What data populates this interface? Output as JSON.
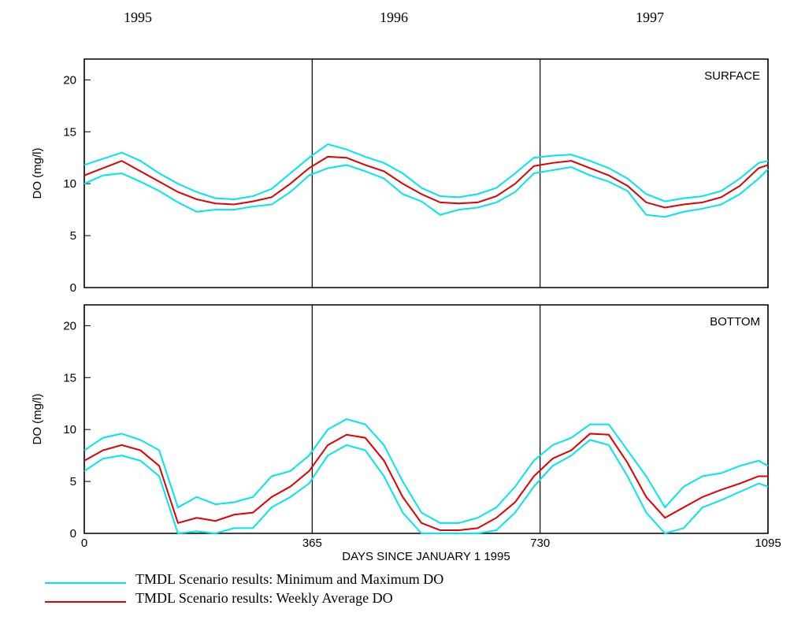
{
  "year_labels": [
    "1995",
    "1996",
    "1997"
  ],
  "legend": [
    {
      "label": "TMDL Scenario results: Minimum and Maximum DO",
      "color": "#00e5ee"
    },
    {
      "label": "TMDL Scenario results: Weekly Average DO",
      "color": "#e00000"
    }
  ],
  "chart_data": [
    {
      "type": "line",
      "panel_label": "SURFACE",
      "ylabel": "DO (mg/l)",
      "xlim": [
        0,
        1095
      ],
      "ylim": [
        0,
        22
      ],
      "yticks": [
        0,
        5,
        10,
        15,
        20
      ],
      "xticks": [
        0,
        365,
        730,
        1095
      ],
      "show_xtick_labels": false,
      "x": [
        0,
        30,
        60,
        90,
        120,
        150,
        180,
        210,
        240,
        270,
        300,
        330,
        360,
        390,
        420,
        450,
        480,
        510,
        540,
        570,
        600,
        630,
        660,
        690,
        720,
        750,
        780,
        810,
        840,
        870,
        900,
        930,
        960,
        990,
        1020,
        1050,
        1080,
        1095
      ],
      "series": [
        {
          "color": "#00e5ee",
          "values": [
            11.8,
            12.4,
            13.0,
            12.2,
            11.0,
            10.0,
            9.2,
            8.6,
            8.5,
            8.8,
            9.5,
            11.0,
            12.5,
            13.8,
            13.3,
            12.6,
            12.0,
            11.0,
            9.6,
            8.8,
            8.7,
            9.0,
            9.6,
            11.0,
            12.5,
            12.7,
            12.8,
            12.2,
            11.5,
            10.5,
            9.0,
            8.3,
            8.6,
            8.8,
            9.3,
            10.5,
            12.0,
            12.2
          ]
        },
        {
          "color": "#00e5ee",
          "values": [
            10.0,
            10.8,
            11.0,
            10.2,
            9.3,
            8.2,
            7.3,
            7.5,
            7.5,
            7.8,
            8.0,
            9.2,
            10.8,
            11.5,
            11.8,
            11.2,
            10.5,
            9.0,
            8.3,
            7.0,
            7.5,
            7.7,
            8.2,
            9.2,
            11.0,
            11.3,
            11.6,
            10.8,
            10.2,
            9.3,
            7.0,
            6.8,
            7.3,
            7.6,
            8.0,
            9.0,
            10.5,
            11.4
          ]
        },
        {
          "color": "#e00000",
          "values": [
            10.8,
            11.5,
            12.2,
            11.2,
            10.2,
            9.2,
            8.5,
            8.1,
            8.0,
            8.3,
            8.7,
            10.0,
            11.5,
            12.6,
            12.5,
            11.8,
            11.2,
            10.0,
            9.0,
            8.2,
            8.1,
            8.2,
            8.8,
            10.0,
            11.7,
            12.0,
            12.2,
            11.5,
            10.8,
            9.8,
            8.2,
            7.7,
            8.0,
            8.2,
            8.7,
            9.8,
            11.5,
            11.8
          ]
        }
      ]
    },
    {
      "type": "line",
      "panel_label": "BOTTOM",
      "ylabel": "DO (mg/l)",
      "xlabel": "DAYS SINCE JANUARY 1 1995",
      "xlim": [
        0,
        1095
      ],
      "ylim": [
        0,
        22
      ],
      "yticks": [
        0,
        5,
        10,
        15,
        20
      ],
      "xticks": [
        0,
        365,
        730,
        1095
      ],
      "show_xtick_labels": true,
      "x": [
        0,
        30,
        60,
        90,
        120,
        150,
        180,
        210,
        240,
        270,
        300,
        330,
        360,
        390,
        420,
        450,
        480,
        510,
        540,
        570,
        600,
        630,
        660,
        690,
        720,
        750,
        780,
        810,
        840,
        870,
        900,
        930,
        960,
        990,
        1020,
        1050,
        1080,
        1095
      ],
      "series": [
        {
          "color": "#00e5ee",
          "values": [
            8.0,
            9.2,
            9.6,
            9.0,
            8.0,
            2.5,
            3.5,
            2.8,
            3.0,
            3.5,
            5.5,
            6.0,
            7.5,
            10.0,
            11.0,
            10.5,
            8.5,
            5.0,
            2.0,
            1.0,
            1.0,
            1.5,
            2.5,
            4.5,
            7.0,
            8.5,
            9.2,
            10.5,
            10.5,
            8.0,
            5.5,
            2.5,
            4.5,
            5.5,
            5.8,
            6.5,
            7.0,
            6.5
          ]
        },
        {
          "color": "#00e5ee",
          "values": [
            6.0,
            7.2,
            7.5,
            7.0,
            5.5,
            0.0,
            0.2,
            0.0,
            0.5,
            0.5,
            2.5,
            3.5,
            4.8,
            7.5,
            8.5,
            8.0,
            5.5,
            2.0,
            0.0,
            0.0,
            0.0,
            0.0,
            0.3,
            2.0,
            4.5,
            6.5,
            7.5,
            9.0,
            8.5,
            5.5,
            2.0,
            0.0,
            0.5,
            2.5,
            3.2,
            4.0,
            4.8,
            4.5
          ]
        },
        {
          "color": "#e00000",
          "values": [
            7.0,
            8.0,
            8.5,
            8.0,
            6.5,
            1.0,
            1.5,
            1.2,
            1.8,
            2.0,
            3.5,
            4.5,
            6.0,
            8.5,
            9.5,
            9.2,
            7.0,
            3.5,
            1.0,
            0.3,
            0.3,
            0.5,
            1.5,
            3.0,
            5.5,
            7.2,
            8.0,
            9.6,
            9.5,
            6.8,
            3.5,
            1.5,
            2.5,
            3.5,
            4.2,
            4.8,
            5.5,
            5.5
          ]
        }
      ]
    }
  ]
}
